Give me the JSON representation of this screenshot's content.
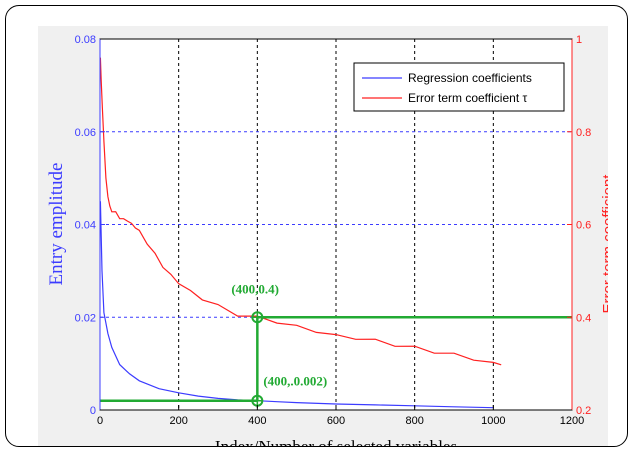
{
  "chart_data": {
    "type": "line",
    "xlabel": "Index/Number of selected variables",
    "ylabel_left": "Entry emplitude",
    "ylabel_right": "Error term coefficient",
    "xlim": [
      0,
      1200
    ],
    "ylim_left": [
      0,
      0.08
    ],
    "ylim_right": [
      0.2,
      1
    ],
    "x_ticks": [
      "0",
      "200",
      "400",
      "600",
      "800",
      "1000",
      "1200"
    ],
    "y_left_ticks": [
      "0",
      "0.02",
      "0.04",
      "0.06",
      "0.08"
    ],
    "y_right_ticks": [
      "0.2",
      "0.4",
      "0.6",
      "0.8",
      "1"
    ],
    "grid": true,
    "legend_position": "top-right",
    "series": [
      {
        "name": "Regression coefficients",
        "axis": "left",
        "color": "#3c3cff",
        "x": [
          1,
          5,
          10,
          20,
          30,
          50,
          75,
          100,
          150,
          200,
          250,
          300,
          350,
          400,
          450,
          500,
          600,
          700,
          800,
          900,
          1000
        ],
        "y": [
          0.045,
          0.03,
          0.021,
          0.0165,
          0.0135,
          0.0098,
          0.0078,
          0.0063,
          0.0046,
          0.0037,
          0.003,
          0.0025,
          0.0022,
          0.002,
          0.0018,
          0.0016,
          0.0013,
          0.0011,
          0.0009,
          0.0007,
          0.0005
        ]
      },
      {
        "name": "Error term coefficient τ",
        "axis": "right",
        "color": "#ff2020",
        "x": [
          1,
          3,
          6,
          10,
          15,
          20,
          25,
          30,
          40,
          50,
          60,
          70,
          80,
          90,
          100,
          120,
          140,
          160,
          180,
          200,
          230,
          260,
          300,
          350,
          400,
          450,
          500,
          550,
          600,
          650,
          700,
          750,
          800,
          850,
          900,
          950,
          1000,
          1020
        ],
        "y": [
          0.96,
          0.91,
          0.85,
          0.78,
          0.7,
          0.66,
          0.64,
          0.63,
          0.625,
          0.615,
          0.61,
          0.61,
          0.6,
          0.595,
          0.585,
          0.56,
          0.535,
          0.51,
          0.49,
          0.475,
          0.455,
          0.44,
          0.425,
          0.405,
          0.4,
          0.39,
          0.38,
          0.37,
          0.36,
          0.355,
          0.35,
          0.34,
          0.335,
          0.325,
          0.32,
          0.31,
          0.3,
          0.3
        ]
      }
    ],
    "annotations": [
      {
        "text": "(400,0.4)",
        "x": 400,
        "y": 0.4,
        "axis": "right"
      },
      {
        "text": "(400,.0.002)",
        "x": 400,
        "y": 0.002,
        "axis": "left"
      }
    ],
    "colors": {
      "left_axis": "#3c3cff",
      "right_axis": "#ff2020",
      "annotation": "#22aa33",
      "blue_grid": "#3c3cff",
      "background": "#f0f0f0"
    }
  }
}
